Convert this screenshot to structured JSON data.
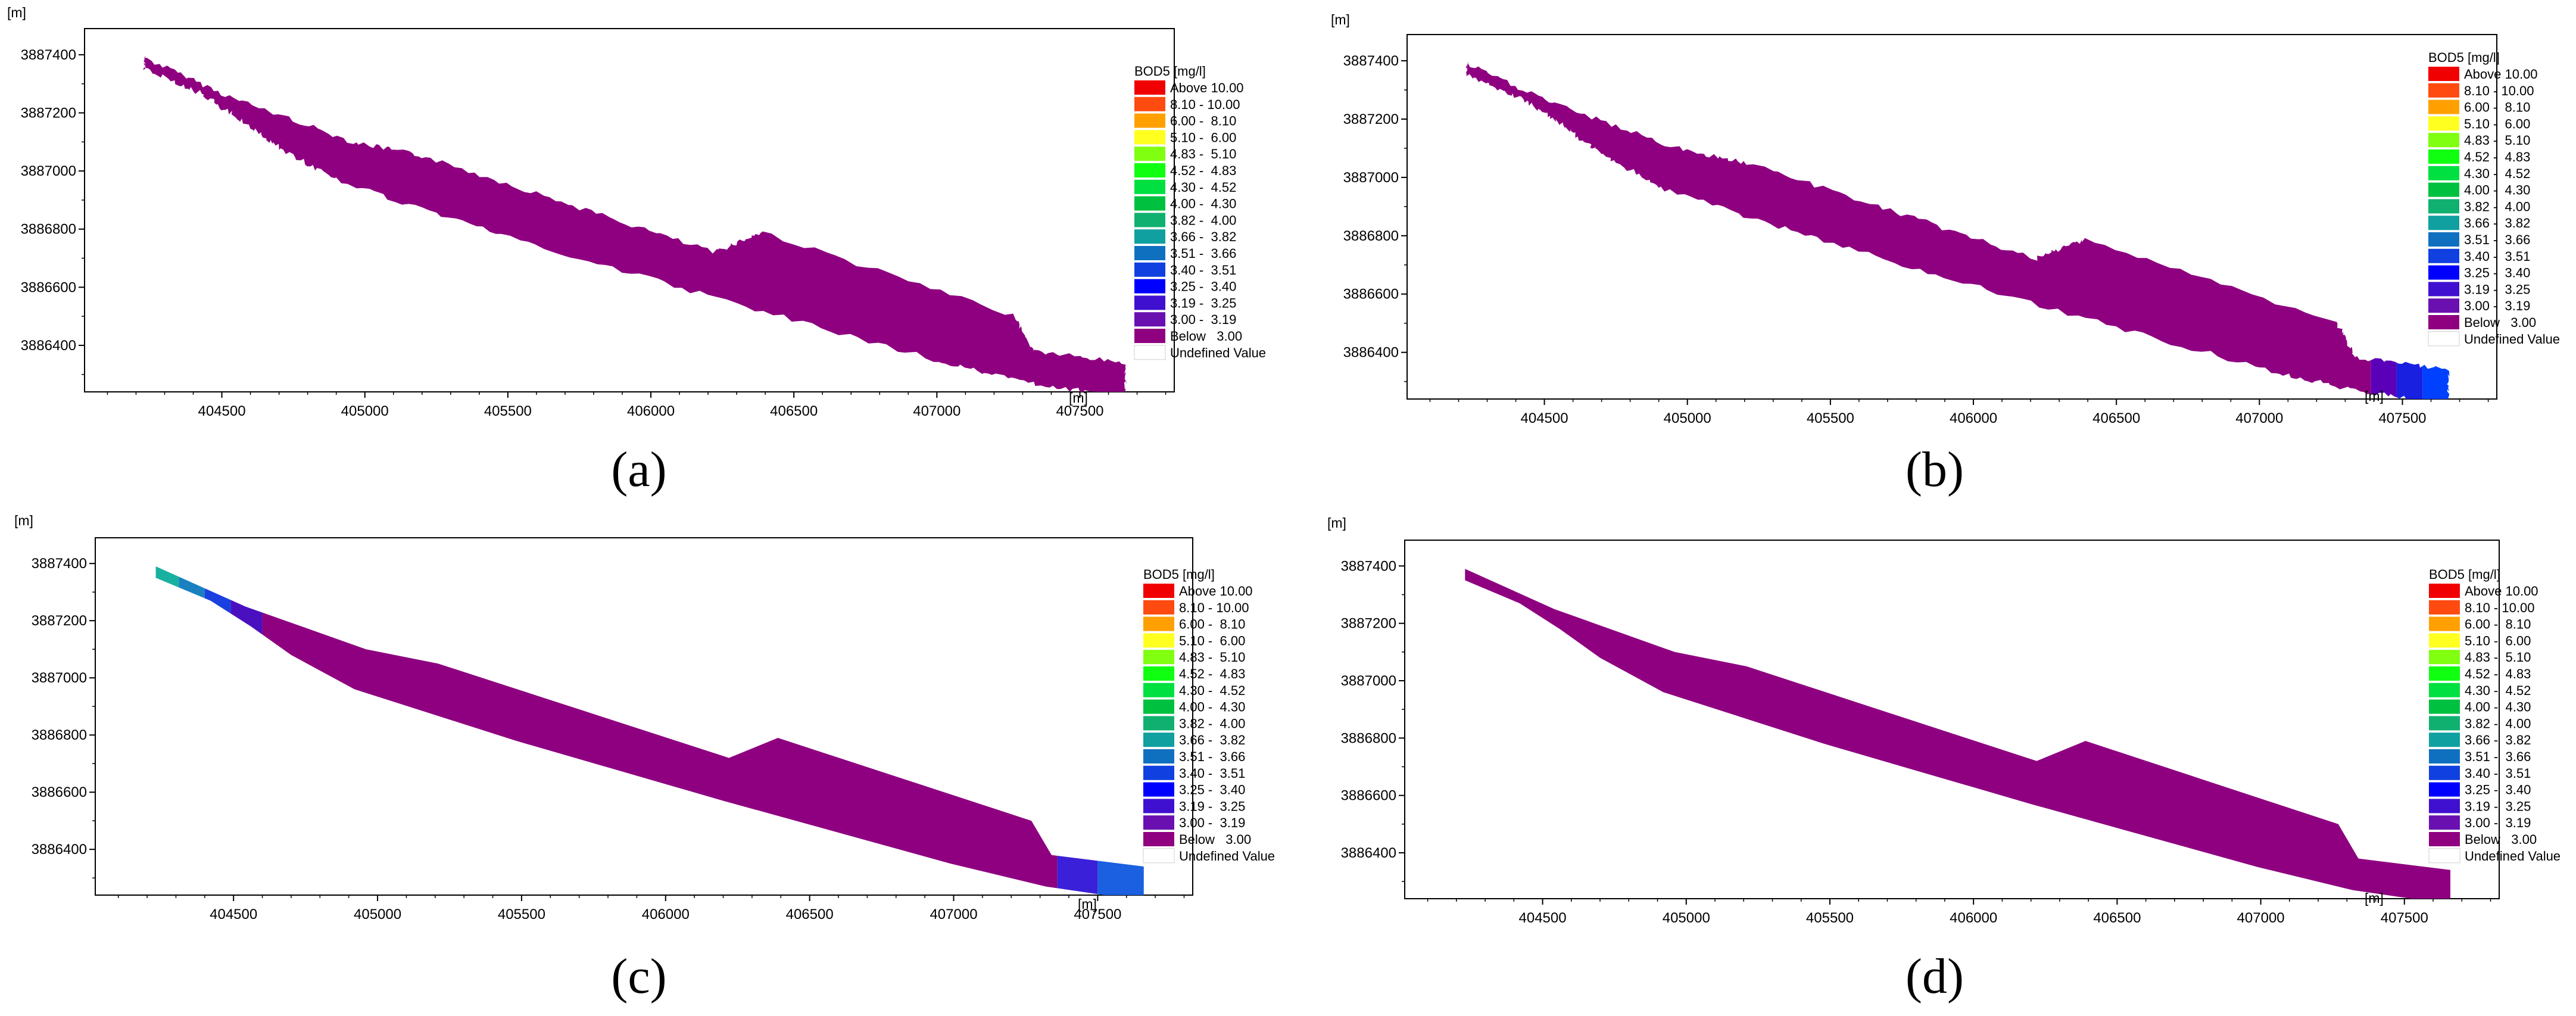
{
  "chart_data": [
    {
      "type": "heatmap",
      "panel": "(a)",
      "caption": "(a)",
      "y_unit_label": "[m]",
      "x_unit_label": "[m]",
      "xlim": [
        404020,
        407830
      ],
      "ylim": [
        3886240,
        3887490
      ],
      "x_ticks": [
        404500,
        405000,
        405500,
        406000,
        406500,
        407000,
        407500
      ],
      "y_ticks": [
        3886400,
        3886600,
        3886800,
        3887000,
        3887200,
        3887400
      ],
      "grid": false,
      "legend_position": "right",
      "legend_title": "BOD5 [mg/l]",
      "domain_style": "rough",
      "field": [
        {
          "x0": 404230,
          "x1": 407660,
          "color": "#8e0080"
        }
      ]
    },
    {
      "type": "heatmap",
      "panel": "(b)",
      "caption": "(b)",
      "y_unit_label": "[m]",
      "x_unit_label": "[m]",
      "xlim": [
        404020,
        407830
      ],
      "ylim": [
        3886240,
        3887490
      ],
      "x_ticks": [
        404500,
        405000,
        405500,
        406000,
        406500,
        407000,
        407500
      ],
      "y_ticks": [
        3886400,
        3886600,
        3886800,
        3887000,
        3887200,
        3887400
      ],
      "grid": false,
      "legend_position": "right",
      "legend_title": "BOD5 [mg/l]",
      "domain_style": "rough",
      "field": [
        {
          "x0": 404230,
          "x1": 407390,
          "color": "#8e0080"
        },
        {
          "x0": 407390,
          "x1": 407480,
          "color": "#5a00b8"
        },
        {
          "x0": 407480,
          "x1": 407570,
          "color": "#1a20e0"
        },
        {
          "x0": 407570,
          "x1": 407660,
          "color": "#0040ff"
        }
      ]
    },
    {
      "type": "heatmap",
      "panel": "(c)",
      "caption": "(c)",
      "y_unit_label": "[m]",
      "x_unit_label": "[m]",
      "xlim": [
        404020,
        407830
      ],
      "ylim": [
        3886240,
        3887490
      ],
      "x_ticks": [
        404500,
        405000,
        405500,
        406000,
        406500,
        407000,
        407500
      ],
      "y_ticks": [
        3886400,
        3886600,
        3886800,
        3887000,
        3887200,
        3887400
      ],
      "grid": false,
      "legend_position": "right",
      "legend_title": "BOD5 [mg/l]",
      "domain_style": "smooth",
      "field": [
        {
          "x0": 404230,
          "x1": 404310,
          "color": "#1ab0a0"
        },
        {
          "x0": 404310,
          "x1": 404400,
          "color": "#1a80c0"
        },
        {
          "x0": 404400,
          "x1": 404490,
          "color": "#1a40e0"
        },
        {
          "x0": 404490,
          "x1": 404600,
          "color": "#4a10c0"
        },
        {
          "x0": 404600,
          "x1": 407360,
          "color": "#8e0080"
        },
        {
          "x0": 407360,
          "x1": 407500,
          "color": "#3a20d8"
        },
        {
          "x0": 407500,
          "x1": 407660,
          "color": "#1a60e0"
        }
      ]
    },
    {
      "type": "heatmap",
      "panel": "(d)",
      "caption": "(d)",
      "y_unit_label": "[m]",
      "x_unit_label": "[m]",
      "xlim": [
        404020,
        407830
      ],
      "ylim": [
        3886240,
        3887490
      ],
      "x_ticks": [
        404500,
        405000,
        405500,
        406000,
        406500,
        407000,
        407500
      ],
      "y_ticks": [
        3886400,
        3886600,
        3886800,
        3887000,
        3887200,
        3887400
      ],
      "grid": false,
      "legend_position": "right",
      "legend_title": "BOD5 [mg/l]",
      "domain_style": "smooth",
      "field": [
        {
          "x0": 404230,
          "x1": 407660,
          "color": "#8e0080"
        }
      ]
    }
  ],
  "legend_entries": [
    {
      "label": "Above 10.00",
      "color": "#f00000"
    },
    {
      "label": "8.10 - 10.00",
      "color": "#ff4a10"
    },
    {
      "label": "6.00 -  8.10",
      "color": "#ffa000"
    },
    {
      "label": "5.10 -  6.00",
      "color": "#ffff20"
    },
    {
      "label": "4.83 -  5.10",
      "color": "#80ff10"
    },
    {
      "label": "4.52 -  4.83",
      "color": "#10ff10"
    },
    {
      "label": "4.30 -  4.52",
      "color": "#00e040"
    },
    {
      "label": "4.00 -  4.30",
      "color": "#00c040"
    },
    {
      "label": "3.82 -  4.00",
      "color": "#10b070"
    },
    {
      "label": "3.66 -  3.82",
      "color": "#10a0a0"
    },
    {
      "label": "3.51 -  3.66",
      "color": "#1070c0"
    },
    {
      "label": "3.40 -  3.51",
      "color": "#1040e0"
    },
    {
      "label": "3.25 -  3.40",
      "color": "#0000ff"
    },
    {
      "label": "3.19 -  3.25",
      "color": "#4010d0"
    },
    {
      "label": "3.00 -  3.19",
      "color": "#6a10b0"
    },
    {
      "label": "Below   3.00",
      "color": "#8e0080"
    },
    {
      "label": "Undefined Value",
      "color": "#ffffff"
    }
  ],
  "river_outline": [
    [
      404230,
      3887390
    ],
    [
      404540,
      3887250
    ],
    [
      404960,
      3887100
    ],
    [
      405210,
      3887050
    ],
    [
      405730,
      3886880
    ],
    [
      406220,
      3886720
    ],
    [
      406390,
      3886790
    ],
    [
      407270,
      3886500
    ],
    [
      407340,
      3886380
    ],
    [
      407660,
      3886340
    ],
    [
      407660,
      3886220
    ],
    [
      407320,
      3886270
    ],
    [
      406990,
      3886350
    ],
    [
      406200,
      3886570
    ],
    [
      405480,
      3886780
    ],
    [
      404920,
      3886960
    ],
    [
      404700,
      3887080
    ],
    [
      404560,
      3887180
    ],
    [
      404420,
      3887270
    ],
    [
      404230,
      3887350
    ]
  ]
}
